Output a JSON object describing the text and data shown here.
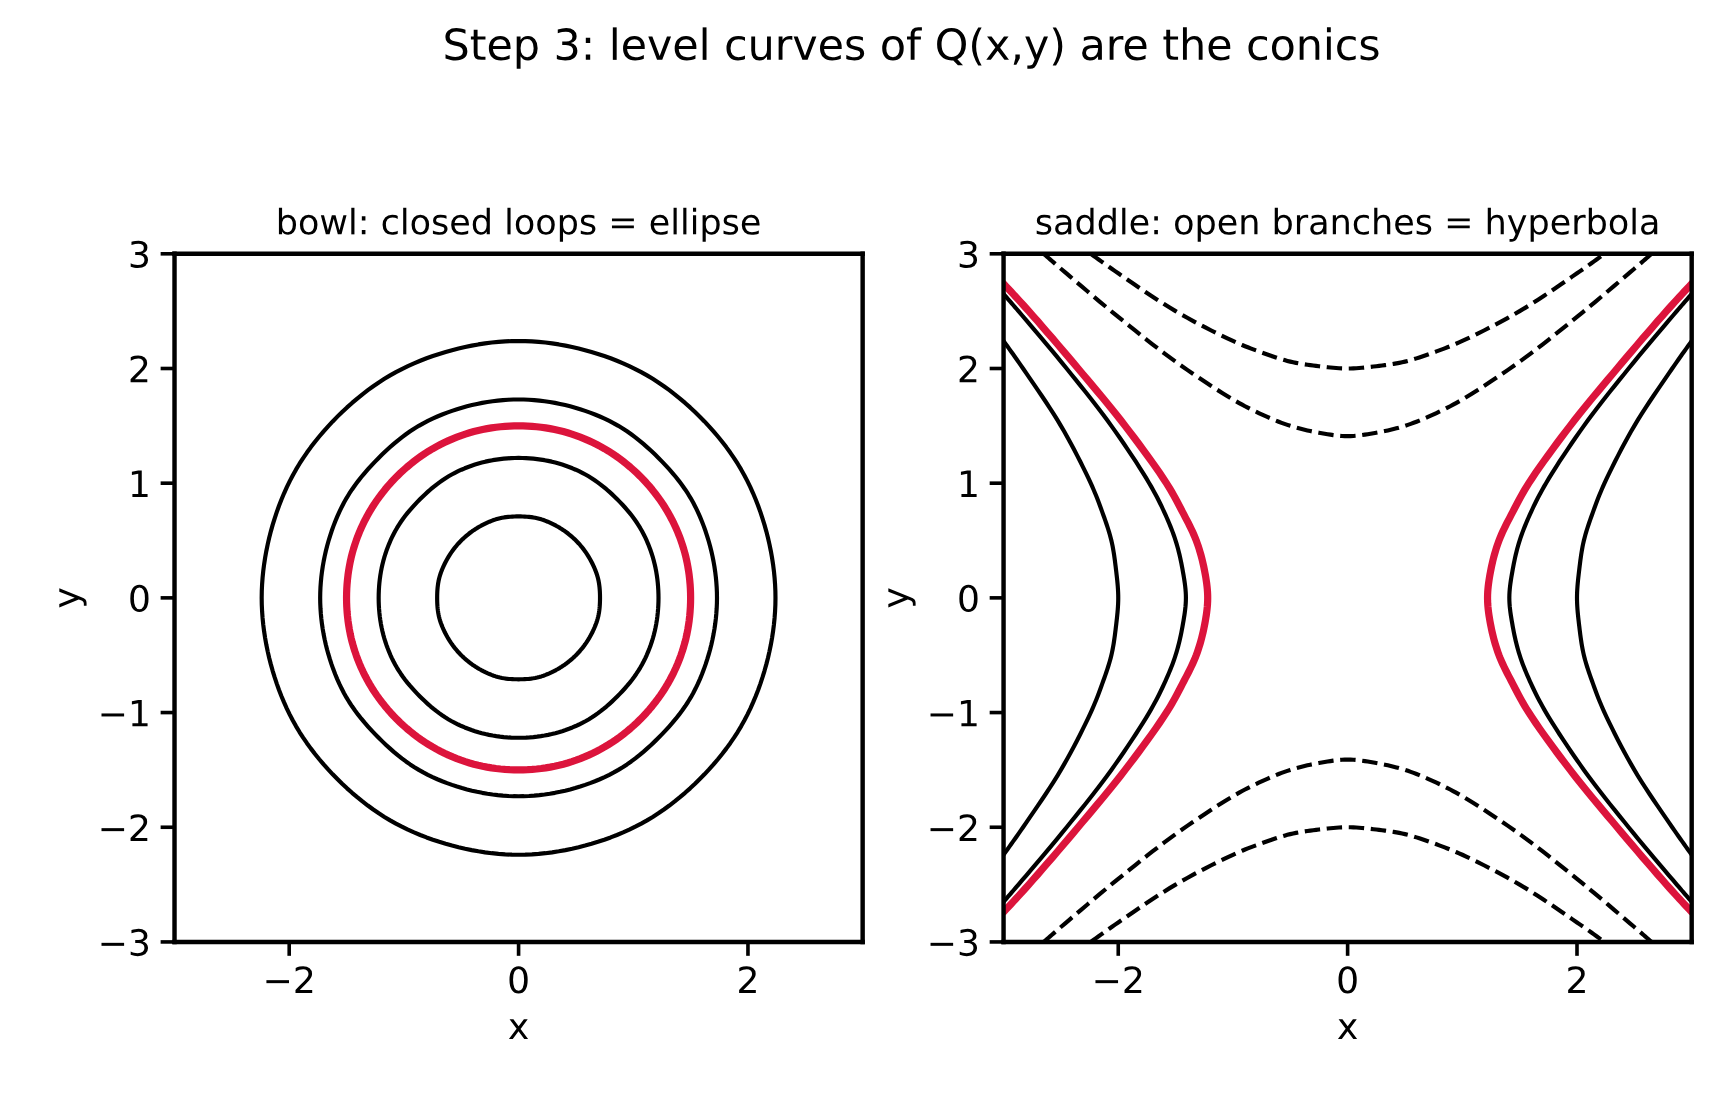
{
  "chart_data": [
    {
      "type": "line",
      "title": "bowl: closed loops = ellipse",
      "xlabel": "x",
      "ylabel": "y",
      "annotations": [
        "Step 3: level curves of Q(x,y) are the conics"
      ],
      "xlim": [
        -3,
        3
      ],
      "ylim": [
        -3,
        3
      ],
      "xticks": [
        -2,
        0,
        2
      ],
      "yticks": [
        -3,
        -2,
        -1,
        0,
        1,
        2,
        3
      ],
      "series": [
        {
          "color": "#000000",
          "line_style": "solid",
          "x": [
            -0.71,
            -0.69,
            -0.61,
            -0.5,
            -0.36,
            -0.18,
            0,
            0.18,
            0.36,
            0.5,
            0.61,
            0.69,
            0.71,
            null,
            -0.71,
            -0.69,
            -0.61,
            -0.5,
            -0.36,
            -0.18,
            0,
            0.18,
            0.36,
            0.5,
            0.61,
            0.69,
            0.71
          ],
          "values": [
            0,
            0.18,
            0.36,
            0.5,
            0.61,
            0.69,
            0.71,
            0.69,
            0.61,
            0.5,
            0.36,
            0.18,
            0,
            null,
            0,
            -0.18,
            -0.36,
            -0.5,
            -0.61,
            -0.69,
            -0.71,
            -0.69,
            -0.61,
            -0.5,
            -0.36,
            -0.18,
            0
          ]
        },
        {
          "color": "#000000",
          "line_style": "solid",
          "x": [
            -1.22,
            -1.18,
            -1.06,
            -0.86,
            -0.61,
            -0.32,
            0,
            0.32,
            0.61,
            0.86,
            1.06,
            1.18,
            1.22,
            null,
            -1.22,
            -1.18,
            -1.06,
            -0.86,
            -0.61,
            -0.32,
            0,
            0.32,
            0.61,
            0.86,
            1.06,
            1.18,
            1.22
          ],
          "values": [
            0,
            0.32,
            0.61,
            0.86,
            1.06,
            1.18,
            1.22,
            1.18,
            1.06,
            0.86,
            0.61,
            0.32,
            0,
            null,
            0,
            -0.32,
            -0.61,
            -0.86,
            -1.06,
            -1.18,
            -1.22,
            -1.18,
            -1.06,
            -0.86,
            -0.61,
            -0.32,
            0
          ]
        },
        {
          "color": "#dc143c",
          "line_style": "solid",
          "x": [
            -1.5,
            -1.45,
            -1.3,
            -1.06,
            -0.75,
            -0.39,
            0,
            0.39,
            0.75,
            1.06,
            1.3,
            1.45,
            1.5,
            null,
            -1.5,
            -1.45,
            -1.3,
            -1.06,
            -0.75,
            -0.39,
            0,
            0.39,
            0.75,
            1.06,
            1.3,
            1.45,
            1.5
          ],
          "values": [
            0,
            0.39,
            0.75,
            1.06,
            1.3,
            1.45,
            1.5,
            1.45,
            1.3,
            1.06,
            0.75,
            0.39,
            0,
            null,
            0,
            -0.39,
            -0.75,
            -1.06,
            -1.3,
            -1.45,
            -1.5,
            -1.45,
            -1.3,
            -1.06,
            -0.75,
            -0.39,
            0
          ]
        },
        {
          "color": "#000000",
          "line_style": "solid",
          "x": [
            -1.73,
            -1.67,
            -1.5,
            -1.22,
            -0.87,
            -0.45,
            0,
            0.45,
            0.87,
            1.22,
            1.5,
            1.67,
            1.73,
            null,
            -1.73,
            -1.67,
            -1.5,
            -1.22,
            -0.87,
            -0.45,
            0,
            0.45,
            0.87,
            1.22,
            1.5,
            1.67,
            1.73
          ],
          "values": [
            0,
            0.45,
            0.87,
            1.22,
            1.5,
            1.67,
            1.73,
            1.67,
            1.5,
            1.22,
            0.87,
            0.45,
            0,
            null,
            0,
            -0.45,
            -0.87,
            -1.22,
            -1.5,
            -1.67,
            -1.73,
            -1.67,
            -1.5,
            -1.22,
            -0.87,
            -0.45,
            0
          ]
        },
        {
          "color": "#000000",
          "line_style": "solid",
          "x": [
            -2.24,
            -2.16,
            -1.94,
            -1.58,
            -1.12,
            -0.58,
            0,
            0.58,
            1.12,
            1.58,
            1.94,
            2.16,
            2.24,
            null,
            -2.24,
            -2.16,
            -1.94,
            -1.58,
            -1.12,
            -0.58,
            0,
            0.58,
            1.12,
            1.58,
            1.94,
            2.16,
            2.24
          ],
          "values": [
            0,
            0.58,
            1.12,
            1.58,
            1.94,
            2.16,
            2.24,
            2.16,
            1.94,
            1.58,
            1.12,
            0.58,
            0,
            null,
            0,
            -0.58,
            -1.12,
            -1.58,
            -1.94,
            -2.16,
            -2.24,
            -2.16,
            -1.94,
            -1.58,
            -1.12,
            -0.58,
            0
          ]
        }
      ]
    },
    {
      "type": "line",
      "title": "saddle: open branches = hyperbola",
      "xlabel": "x",
      "ylabel": "y",
      "xlim": [
        -3,
        3
      ],
      "ylim": [
        -3,
        3
      ],
      "xticks": [
        -2,
        0,
        2
      ],
      "yticks": [
        -3,
        -2,
        -1,
        0,
        1,
        2,
        3
      ],
      "series": [
        {
          "color": "#000000",
          "line_style": "solid",
          "x": [
            -3,
            -2.83,
            -2.5,
            -2.24,
            -2.14,
            -2.06,
            -2.02,
            -2,
            -2.02,
            -2.06,
            -2.14,
            -2.24,
            -2.5,
            -2.83,
            -3,
            null,
            3,
            2.83,
            2.5,
            2.24,
            2.14,
            2.06,
            2.02,
            2,
            2.02,
            2.06,
            2.14,
            2.24,
            2.5,
            2.83,
            3
          ],
          "values": [
            -2.24,
            -2,
            -1.5,
            -1,
            -0.75,
            -0.5,
            -0.25,
            0,
            0.25,
            0.5,
            0.75,
            1,
            1.5,
            2,
            2.24,
            null,
            -2.24,
            -2,
            -1.5,
            -1,
            -0.75,
            -0.5,
            -0.25,
            0,
            0.25,
            0.5,
            0.75,
            1,
            1.5,
            2,
            2.24
          ]
        },
        {
          "color": "#000000",
          "line_style": "solid",
          "x": [
            -3,
            -2.87,
            -2.45,
            -2.06,
            -1.73,
            -1.6,
            -1.5,
            -1.44,
            -1.41,
            -1.44,
            -1.5,
            -1.6,
            -1.73,
            -2.06,
            -2.45,
            -2.87,
            -3,
            null,
            3,
            2.87,
            2.45,
            2.06,
            1.73,
            1.6,
            1.5,
            1.44,
            1.41,
            1.44,
            1.5,
            1.6,
            1.73,
            2.06,
            2.45,
            2.87,
            3
          ],
          "values": [
            -2.65,
            -2.5,
            -2,
            -1.5,
            -1,
            -0.75,
            -0.5,
            -0.25,
            0,
            0.25,
            0.5,
            0.75,
            1,
            1.5,
            2,
            2.5,
            2.65,
            null,
            -2.65,
            -2.5,
            -2,
            -1.5,
            -1,
            -0.75,
            -0.5,
            -0.25,
            0,
            0.25,
            0.5,
            0.75,
            1,
            1.5,
            2,
            2.5,
            2.65
          ]
        },
        {
          "color": "#dc143c",
          "line_style": "solid",
          "x": [
            -3,
            -2.78,
            -2.35,
            -1.94,
            -1.58,
            -1.44,
            -1.32,
            -1.25,
            -1.22,
            -1.25,
            -1.32,
            -1.44,
            -1.58,
            -1.94,
            -2.35,
            -2.78,
            -3,
            null,
            3,
            2.78,
            2.35,
            1.94,
            1.58,
            1.44,
            1.32,
            1.25,
            1.22,
            1.25,
            1.32,
            1.44,
            1.58,
            1.94,
            2.35,
            2.78,
            3
          ],
          "values": [
            -2.74,
            -2.5,
            -2,
            -1.5,
            -1,
            -0.75,
            -0.5,
            -0.25,
            0,
            0.25,
            0.5,
            0.75,
            1,
            1.5,
            2,
            2.5,
            2.74,
            null,
            -2.74,
            -2.5,
            -2,
            -1.5,
            -1,
            -0.75,
            -0.5,
            -0.25,
            0,
            0.25,
            0.5,
            0.75,
            1,
            1.5,
            2,
            2.5,
            2.74
          ]
        },
        {
          "color": "#000000",
          "line_style": "dashed",
          "x": [
            -2.65,
            -2.5,
            -2,
            -1.5,
            -1,
            -0.75,
            -0.5,
            -0.25,
            0,
            0.25,
            0.5,
            0.75,
            1,
            1.5,
            2,
            2.5,
            2.65,
            null,
            -2.65,
            -2.5,
            -2,
            -1.5,
            -1,
            -0.75,
            -0.5,
            -0.25,
            0,
            0.25,
            0.5,
            0.75,
            1,
            1.5,
            2,
            2.5,
            2.65
          ],
          "values": [
            3,
            2.87,
            2.45,
            2.06,
            1.73,
            1.6,
            1.5,
            1.44,
            1.41,
            1.44,
            1.5,
            1.6,
            1.73,
            2.06,
            2.45,
            2.87,
            3,
            null,
            -3,
            -2.87,
            -2.45,
            -2.06,
            -1.73,
            -1.6,
            -1.5,
            -1.44,
            -1.41,
            -1.44,
            -1.5,
            -1.6,
            -1.73,
            -2.06,
            -2.45,
            -2.87,
            -3
          ]
        },
        {
          "color": "#000000",
          "line_style": "dashed",
          "x": [
            -2.24,
            -2,
            -1.5,
            -1,
            -0.75,
            -0.5,
            -0.25,
            0,
            0.25,
            0.5,
            0.75,
            1,
            1.5,
            2,
            2.24,
            null,
            -2.24,
            -2,
            -1.5,
            -1,
            -0.75,
            -0.5,
            -0.25,
            0,
            0.25,
            0.5,
            0.75,
            1,
            1.5,
            2,
            2.24
          ],
          "values": [
            3,
            2.83,
            2.5,
            2.24,
            2.14,
            2.06,
            2.02,
            2,
            2.02,
            2.06,
            2.14,
            2.24,
            2.5,
            2.83,
            3,
            null,
            -3,
            -2.83,
            -2.5,
            -2.24,
            -2.14,
            -2.06,
            -2.02,
            -2,
            -2.02,
            -2.06,
            -2.14,
            -2.24,
            -2.5,
            -2.83,
            -3
          ]
        }
      ]
    }
  ]
}
